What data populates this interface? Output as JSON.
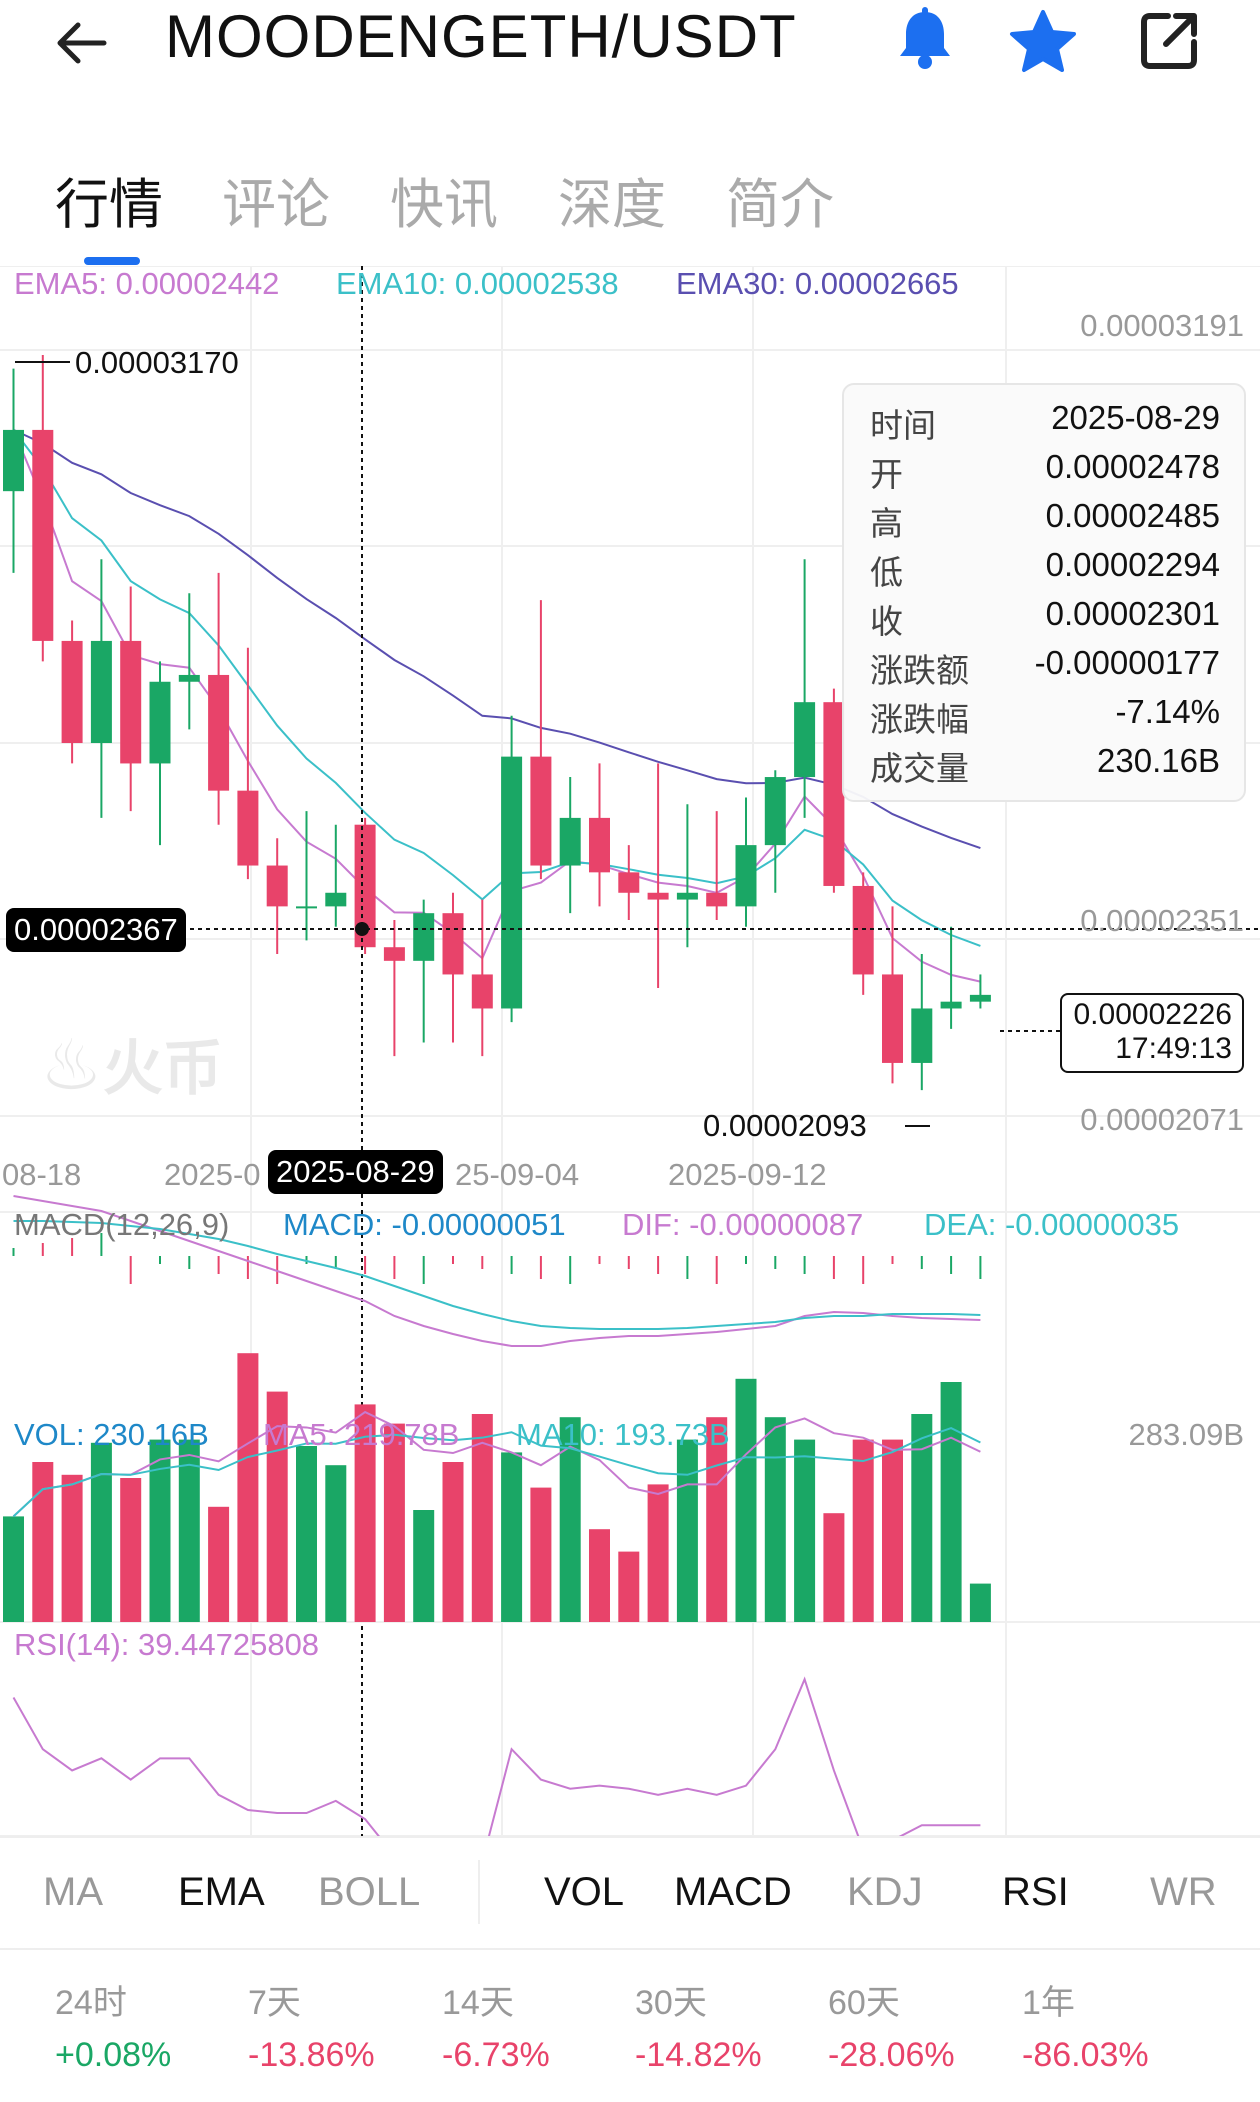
{
  "header": {
    "title": "MOODENGETH/USDT"
  },
  "tabs": [
    {
      "label": "行情",
      "active": true
    },
    {
      "label": "评论"
    },
    {
      "label": "快讯"
    },
    {
      "label": "深度"
    },
    {
      "label": "简介"
    }
  ],
  "ema_legend": {
    "ema5": "EMA5: 0.00002442",
    "ema10": "EMA10: 0.00002538",
    "ema30": "EMA30: 0.00002665"
  },
  "price_axis": {
    "top": "0.00003191",
    "mid": "0.00002351",
    "bottom": "0.00002071"
  },
  "high_label": "0.00003170",
  "low_label": "0.00002093",
  "cursor_price": "0.00002367",
  "cursor_date": "2025-08-29",
  "last_price": {
    "price": "0.00002226",
    "time": "17:49:13"
  },
  "date_axis": [
    "08-18",
    "2025-0",
    "25-09-04",
    "2025-09-12"
  ],
  "tooltip": [
    {
      "k": "时间",
      "v": "2025-08-29"
    },
    {
      "k": "开",
      "v": "0.00002478"
    },
    {
      "k": "高",
      "v": "0.00002485"
    },
    {
      "k": "低",
      "v": "0.00002294"
    },
    {
      "k": "收",
      "v": "0.00002301"
    },
    {
      "k": "涨跌额",
      "v": "-0.00000177"
    },
    {
      "k": "涨跌幅",
      "v": "-7.14%"
    },
    {
      "k": "成交量",
      "v": "230.16B"
    }
  ],
  "macd_legend": {
    "name": "MACD(12,26,9)",
    "macd": "MACD: -0.00000051",
    "dif": "DIF: -0.00000087",
    "dea": "DEA: -0.00000035"
  },
  "vol_legend": {
    "vol": "VOL: 230.16B",
    "ma5": "MA5: 219.78B",
    "ma10": "MA10: 193.73B",
    "max": "283.09B"
  },
  "rsi_legend": "RSI(14): 39.44725808",
  "watermark": "火币",
  "indicators": [
    {
      "label": "MA",
      "on": false
    },
    {
      "label": "EMA",
      "on": true
    },
    {
      "label": "BOLL",
      "on": false
    },
    {
      "label": "VOL",
      "on": true
    },
    {
      "label": "MACD",
      "on": true
    },
    {
      "label": "KDJ",
      "on": false
    },
    {
      "label": "RSI",
      "on": true
    },
    {
      "label": "WR",
      "on": false
    }
  ],
  "changes": [
    {
      "period": "24时",
      "value": "+0.08%",
      "dir": "up"
    },
    {
      "period": "7天",
      "value": "-13.86%",
      "dir": "down"
    },
    {
      "period": "14天",
      "value": "-6.73%",
      "dir": "down"
    },
    {
      "period": "30天",
      "value": "-14.82%",
      "dir": "down"
    },
    {
      "period": "60天",
      "value": "-28.06%",
      "dir": "down"
    },
    {
      "period": "1年",
      "value": "-86.03%",
      "dir": "down"
    }
  ],
  "colors": {
    "up": "#1aa765",
    "down": "#e8436a",
    "accent": "#1c6ff0",
    "ema5": "#c77ad0",
    "ema10": "#3bc0c8",
    "ema30": "#5a4fb0"
  },
  "chart_data": {
    "type": "candlestick",
    "candles": [
      {
        "o": 2.97e-05,
        "h": 3.15e-05,
        "l": 2.85e-05,
        "c": 3.06e-05
      },
      {
        "o": 3.06e-05,
        "h": 3.17e-05,
        "l": 2.72e-05,
        "c": 2.75e-05
      },
      {
        "o": 2.75e-05,
        "h": 2.78e-05,
        "l": 2.57e-05,
        "c": 2.6e-05
      },
      {
        "o": 2.6e-05,
        "h": 2.87e-05,
        "l": 2.49e-05,
        "c": 2.75e-05
      },
      {
        "o": 2.75e-05,
        "h": 2.83e-05,
        "l": 2.5e-05,
        "c": 2.57e-05
      },
      {
        "o": 2.57e-05,
        "h": 2.72e-05,
        "l": 2.45e-05,
        "c": 2.69e-05
      },
      {
        "o": 2.69e-05,
        "h": 2.82e-05,
        "l": 2.62e-05,
        "c": 2.7e-05
      },
      {
        "o": 2.7e-05,
        "h": 2.85e-05,
        "l": 2.48e-05,
        "c": 2.53e-05
      },
      {
        "o": 2.53e-05,
        "h": 2.74e-05,
        "l": 2.4e-05,
        "c": 2.42e-05
      },
      {
        "o": 2.42e-05,
        "h": 2.46e-05,
        "l": 2.29e-05,
        "c": 2.36e-05
      },
      {
        "o": 2.36e-05,
        "h": 2.5e-05,
        "l": 2.31e-05,
        "c": 2.36e-05
      },
      {
        "o": 2.36e-05,
        "h": 2.48e-05,
        "l": 2.33e-05,
        "c": 2.38e-05
      },
      {
        "o": 2.48e-05,
        "h": 2.49e-05,
        "l": 2.29e-05,
        "c": 2.3e-05
      },
      {
        "o": 2.3e-05,
        "h": 2.34e-05,
        "l": 2.14e-05,
        "c": 2.28e-05
      },
      {
        "o": 2.28e-05,
        "h": 2.37e-05,
        "l": 2.16e-05,
        "c": 2.35e-05
      },
      {
        "o": 2.35e-05,
        "h": 2.38e-05,
        "l": 2.16e-05,
        "c": 2.26e-05
      },
      {
        "o": 2.26e-05,
        "h": 2.37e-05,
        "l": 2.14e-05,
        "c": 2.21e-05
      },
      {
        "o": 2.21e-05,
        "h": 2.64e-05,
        "l": 2.19e-05,
        "c": 2.58e-05
      },
      {
        "o": 2.58e-05,
        "h": 2.81e-05,
        "l": 2.4e-05,
        "c": 2.42e-05
      },
      {
        "o": 2.42e-05,
        "h": 2.55e-05,
        "l": 2.35e-05,
        "c": 2.49e-05
      },
      {
        "o": 2.49e-05,
        "h": 2.57e-05,
        "l": 2.36e-05,
        "c": 2.41e-05
      },
      {
        "o": 2.41e-05,
        "h": 2.45e-05,
        "l": 2.34e-05,
        "c": 2.38e-05
      },
      {
        "o": 2.38e-05,
        "h": 2.57e-05,
        "l": 2.24e-05,
        "c": 2.37e-05
      },
      {
        "o": 2.37e-05,
        "h": 2.51e-05,
        "l": 2.3e-05,
        "c": 2.38e-05
      },
      {
        "o": 2.38e-05,
        "h": 2.5e-05,
        "l": 2.34e-05,
        "c": 2.36e-05
      },
      {
        "o": 2.36e-05,
        "h": 2.52e-05,
        "l": 2.33e-05,
        "c": 2.45e-05
      },
      {
        "o": 2.45e-05,
        "h": 2.56e-05,
        "l": 2.38e-05,
        "c": 2.55e-05
      },
      {
        "o": 2.55e-05,
        "h": 2.87e-05,
        "l": 2.49e-05,
        "c": 2.66e-05
      },
      {
        "o": 2.66e-05,
        "h": 2.68e-05,
        "l": 2.38e-05,
        "c": 2.39e-05
      },
      {
        "o": 2.39e-05,
        "h": 2.41e-05,
        "l": 2.23e-05,
        "c": 2.26e-05
      },
      {
        "o": 2.26e-05,
        "h": 2.36e-05,
        "l": 2.1e-05,
        "c": 2.13e-05
      },
      {
        "o": 2.13e-05,
        "h": 2.29e-05,
        "l": 2.09e-05,
        "c": 2.21e-05
      },
      {
        "o": 2.21e-05,
        "h": 2.33e-05,
        "l": 2.18e-05,
        "c": 2.22e-05
      },
      {
        "o": 2.22e-05,
        "h": 2.26e-05,
        "l": 2.21e-05,
        "c": 2.23e-05
      }
    ],
    "ylim": [
      2.03e-05,
      3.22e-05
    ],
    "volume": [
      0.33,
      0.5,
      0.46,
      0.56,
      0.45,
      0.57,
      0.57,
      0.36,
      0.84,
      0.72,
      0.55,
      0.49,
      0.68,
      0.62,
      0.35,
      0.5,
      0.65,
      0.53,
      0.42,
      0.64,
      0.29,
      0.22,
      0.43,
      0.57,
      0.64,
      0.76,
      0.64,
      0.57,
      0.34,
      0.57,
      0.57,
      0.65,
      0.75,
      0.12
    ],
    "rsi": [
      62,
      45,
      38,
      42,
      35,
      42,
      42,
      30,
      25,
      24,
      24,
      28,
      22,
      10,
      8,
      12,
      8,
      45,
      35,
      32,
      33,
      32,
      30,
      32,
      30,
      33,
      45,
      68,
      38,
      12,
      15,
      20,
      20,
      20
    ]
  }
}
